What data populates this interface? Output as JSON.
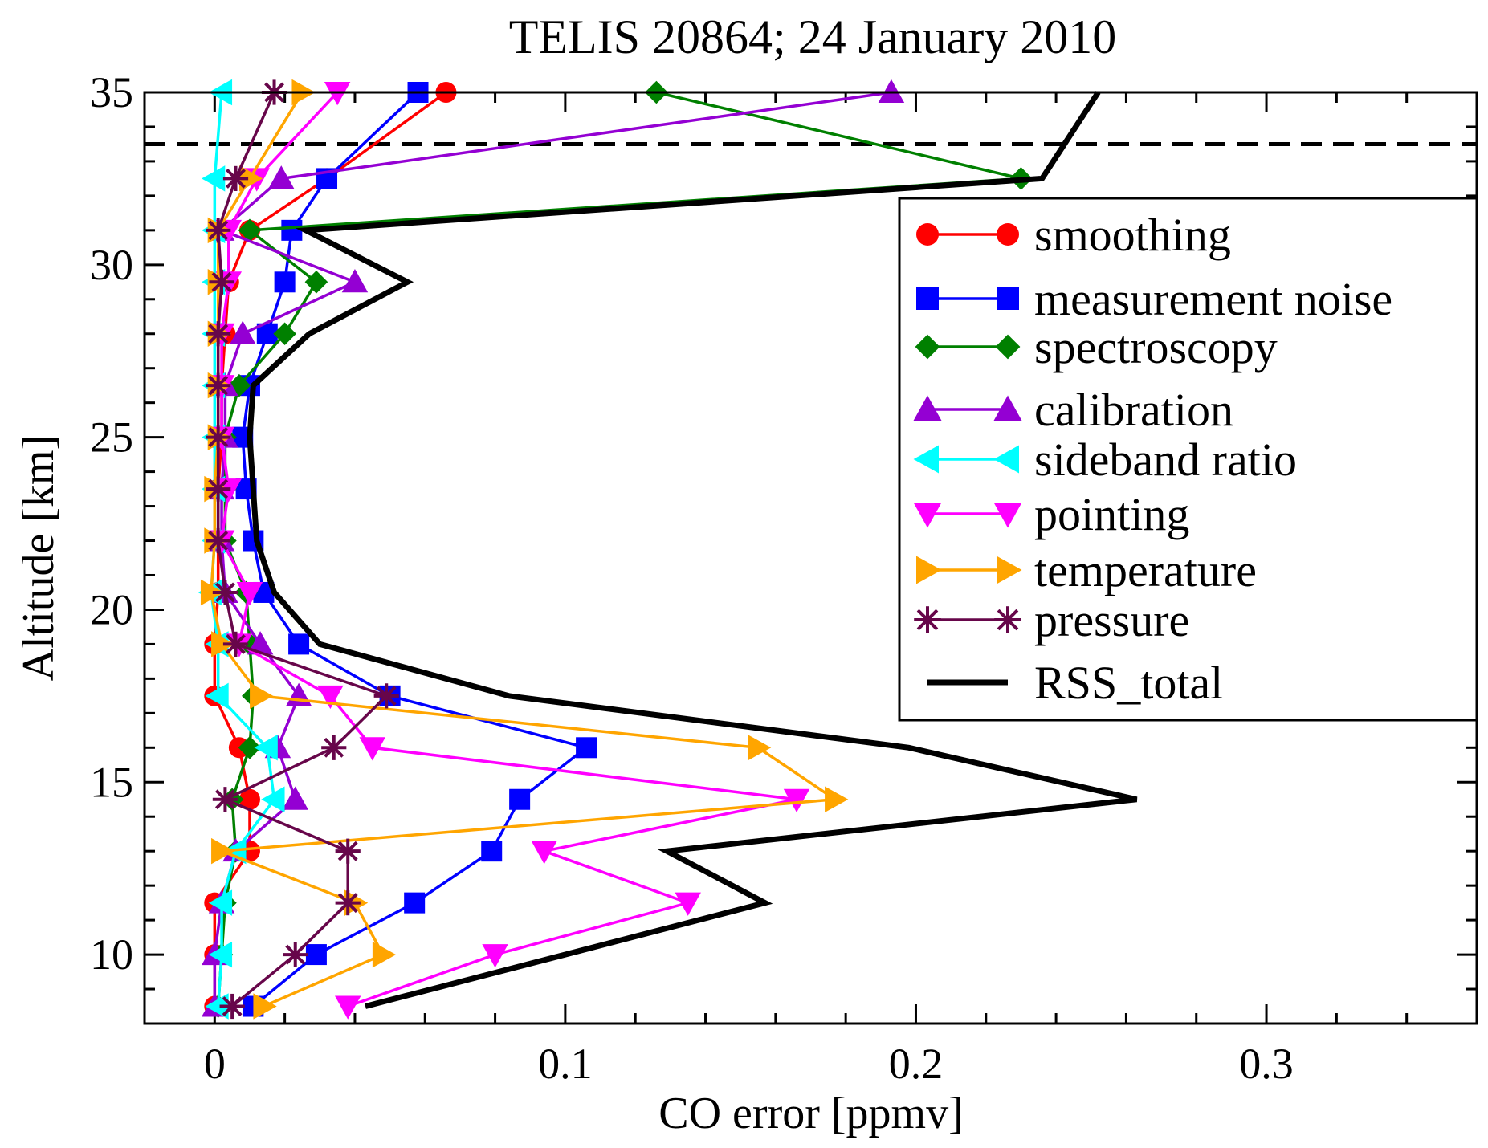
{
  "chart_data": {
    "type": "line",
    "title": "TELIS 20864; 24 January 2010",
    "xlabel": "CO error [ppmv]",
    "ylabel": "Altitude [km]",
    "xlim": [
      -0.02,
      0.36
    ],
    "ylim": [
      8,
      35
    ],
    "x_major_ticks": [
      0,
      0.1,
      0.2,
      0.3
    ],
    "x_tick_labels": [
      "0",
      "0.1",
      "0.2",
      "0.3"
    ],
    "x_minor_step": 0.02,
    "y_major_ticks": [
      10,
      15,
      20,
      25,
      30,
      35
    ],
    "y_tick_labels": [
      "10",
      "15",
      "20",
      "25",
      "30",
      "35"
    ],
    "y_minor_step": 1,
    "grid": false,
    "legend_placement": "right",
    "reference_line": {
      "style": "dashed",
      "color": "#000000",
      "altitude": 33.5
    },
    "altitudes": [
      8.5,
      10,
      11.5,
      13,
      14.5,
      16,
      17.5,
      19,
      20.5,
      22,
      23.5,
      25,
      26.5,
      28,
      29.5,
      31,
      32.5,
      35
    ],
    "series": [
      {
        "name": "smoothing",
        "color": "#ff0000",
        "marker": "circle",
        "values": [
          0,
          0,
          0,
          0.01,
          0.01,
          0.007,
          0,
          0,
          0.001,
          0.001,
          0.001,
          0.002,
          0.002,
          0.003,
          0.004,
          0.01,
          0.032,
          0.066
        ]
      },
      {
        "name": "measurement noise",
        "color": "#0000ff",
        "marker": "square",
        "values": [
          0.011,
          0.029,
          0.057,
          0.079,
          0.087,
          0.106,
          0.05,
          0.024,
          0.014,
          0.011,
          0.009,
          0.008,
          0.01,
          0.015,
          0.02,
          0.022,
          0.032,
          0.058
        ]
      },
      {
        "name": "spectroscopy",
        "color": "#008000",
        "marker": "diamond",
        "values": [
          0.001,
          0.002,
          0.003,
          0.006,
          0.005,
          0.01,
          0.011,
          0.01,
          0.009,
          0.003,
          0.003,
          0.003,
          0.007,
          0.02,
          0.029,
          0.01,
          0.23,
          0.126
        ]
      },
      {
        "name": "calibration",
        "color": "#9400d3",
        "marker": "triangle-up",
        "values": [
          0,
          0,
          0.002,
          0.006,
          0.023,
          0.018,
          0.024,
          0.013,
          0.003,
          0.002,
          0.002,
          0.003,
          0.003,
          0.008,
          0.04,
          0.002,
          0.019,
          0.193
        ]
      },
      {
        "name": "sideband ratio",
        "color": "#00ffff",
        "marker": "triangle-left",
        "values": [
          0.001,
          0.002,
          0.002,
          0.006,
          0.017,
          0.015,
          0.001,
          0.001,
          -0.001,
          0,
          0,
          0,
          0,
          0,
          0,
          0,
          0,
          0.002
        ]
      },
      {
        "name": "pointing",
        "color": "#ff00ff",
        "marker": "triangle-down",
        "values": [
          0.038,
          0.08,
          0.135,
          0.094,
          0.166,
          0.045,
          0.033,
          0.007,
          0.01,
          0.002,
          0.004,
          0.002,
          0.002,
          0.002,
          0.004,
          0.004,
          0.012,
          0.035
        ]
      },
      {
        "name": "temperature",
        "color": "#ffa500",
        "marker": "triangle-right",
        "values": [
          0.014,
          0.048,
          0.04,
          0.002,
          0.177,
          0.155,
          0.013,
          0.002,
          -0.001,
          0,
          0,
          0.001,
          0.001,
          0.001,
          0.001,
          0.001,
          0.01,
          0.025
        ]
      },
      {
        "name": "pressure",
        "color": "#67064a",
        "marker": "star",
        "values": [
          0.005,
          0.023,
          0.038,
          0.038,
          0.003,
          0.034,
          0.049,
          0.006,
          0.003,
          0.001,
          0.001,
          0.001,
          0.001,
          0.001,
          0.002,
          0.001,
          0.006,
          0.017
        ]
      },
      {
        "name": "RSS_total",
        "color": "#000000",
        "marker": "none",
        "values": [
          0.043,
          0.1,
          0.157,
          0.129,
          0.263,
          0.198,
          0.084,
          0.03,
          0.017,
          0.012,
          0.011,
          0.01,
          0.011,
          0.027,
          0.055,
          0.026,
          0.236,
          0.252
        ]
      }
    ]
  }
}
